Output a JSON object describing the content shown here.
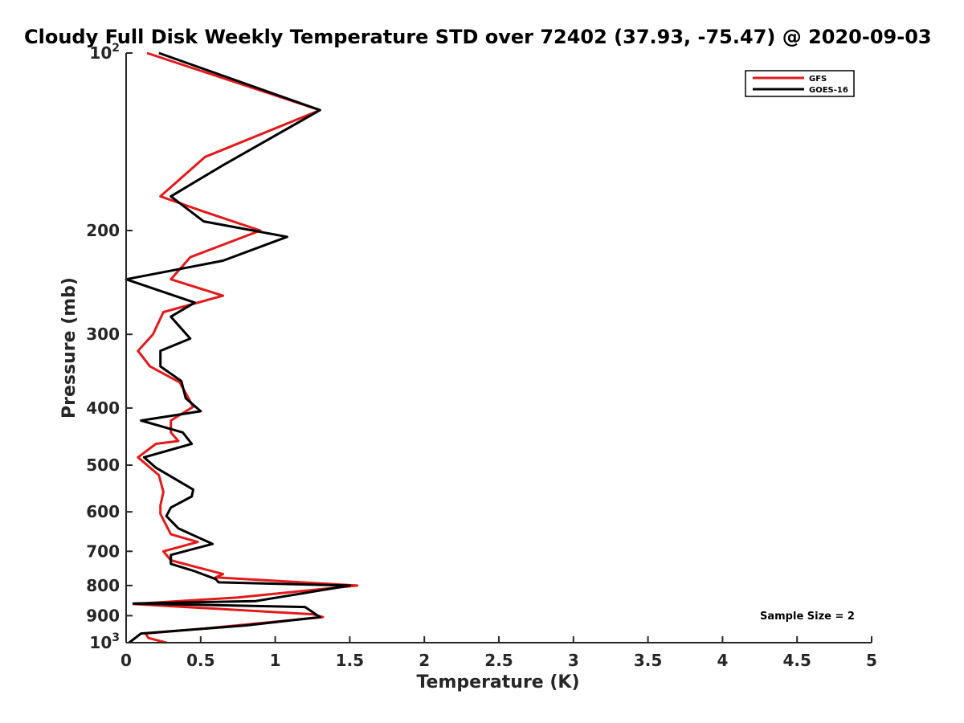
{
  "chart_data": {
    "type": "line",
    "title": "Cloudy Full Disk Weekly Temperature STD over 72402 (37.93, -75.47) @ 2020-09-03",
    "xlabel": "Temperature (K)",
    "ylabel": "Pressure (mb)",
    "xlim": [
      0,
      5
    ],
    "ylim": [
      100,
      1000
    ],
    "yscale": "log",
    "y_reversed": true,
    "grid": false,
    "legend_position": "top-right",
    "x_ticks": [
      "0",
      "0.5",
      "1",
      "1.5",
      "2",
      "2.5",
      "3",
      "3.5",
      "4",
      "4.5",
      "5"
    ],
    "y_ticks": [
      {
        "value": 100,
        "base": "10",
        "exp": "2"
      },
      {
        "value": 200,
        "label": "200"
      },
      {
        "value": 300,
        "label": "300"
      },
      {
        "value": 400,
        "label": "400"
      },
      {
        "value": 500,
        "label": "500"
      },
      {
        "value": 600,
        "label": "600"
      },
      {
        "value": 700,
        "label": "700"
      },
      {
        "value": 800,
        "label": "800"
      },
      {
        "value": 900,
        "label": "900"
      },
      {
        "value": 1000,
        "base": "10",
        "exp": "3"
      }
    ],
    "annotation": "Sample Size = 2",
    "series": [
      {
        "name": "GFS",
        "color": "#e31a1c",
        "points": [
          [
            0.14,
            100
          ],
          [
            1.3,
            125
          ],
          [
            0.53,
            150
          ],
          [
            0.23,
            175
          ],
          [
            0.5,
            185
          ],
          [
            0.9,
            200
          ],
          [
            0.43,
            222
          ],
          [
            0.3,
            242
          ],
          [
            0.65,
            258
          ],
          [
            0.25,
            275
          ],
          [
            0.18,
            300
          ],
          [
            0.08,
            320
          ],
          [
            0.16,
            340
          ],
          [
            0.36,
            362
          ],
          [
            0.45,
            398
          ],
          [
            0.3,
            420
          ],
          [
            0.3,
            440
          ],
          [
            0.35,
            455
          ],
          [
            0.2,
            460
          ],
          [
            0.08,
            485
          ],
          [
            0.22,
            520
          ],
          [
            0.25,
            555
          ],
          [
            0.23,
            585
          ],
          [
            0.23,
            605
          ],
          [
            0.3,
            655
          ],
          [
            0.48,
            675
          ],
          [
            0.25,
            700
          ],
          [
            0.3,
            725
          ],
          [
            0.65,
            765
          ],
          [
            0.6,
            775
          ],
          [
            1.55,
            800
          ],
          [
            0.75,
            838
          ],
          [
            0.05,
            860
          ],
          [
            1.25,
            895
          ],
          [
            1.32,
            905
          ],
          [
            0.55,
            945
          ],
          [
            0.13,
            965
          ],
          [
            0.15,
            982
          ],
          [
            0.27,
            1000
          ]
        ]
      },
      {
        "name": "GOES-16",
        "color": "#000000",
        "points": [
          [
            0.22,
            100
          ],
          [
            1.3,
            125
          ],
          [
            0.65,
            155
          ],
          [
            0.3,
            175
          ],
          [
            0.52,
            193
          ],
          [
            1.08,
            205
          ],
          [
            0.65,
            225
          ],
          [
            0.0,
            242
          ],
          [
            0.46,
            265
          ],
          [
            0.3,
            280
          ],
          [
            0.43,
            305
          ],
          [
            0.23,
            320
          ],
          [
            0.23,
            340
          ],
          [
            0.37,
            360
          ],
          [
            0.4,
            385
          ],
          [
            0.5,
            405
          ],
          [
            0.1,
            420
          ],
          [
            0.38,
            440
          ],
          [
            0.44,
            460
          ],
          [
            0.12,
            485
          ],
          [
            0.2,
            505
          ],
          [
            0.45,
            550
          ],
          [
            0.44,
            565
          ],
          [
            0.3,
            590
          ],
          [
            0.27,
            610
          ],
          [
            0.35,
            640
          ],
          [
            0.58,
            680
          ],
          [
            0.3,
            710
          ],
          [
            0.3,
            735
          ],
          [
            0.45,
            755
          ],
          [
            0.6,
            780
          ],
          [
            0.62,
            790
          ],
          [
            1.5,
            800
          ],
          [
            0.87,
            850
          ],
          [
            0.05,
            858
          ],
          [
            1.2,
            870
          ],
          [
            1.3,
            905
          ],
          [
            0.8,
            935
          ],
          [
            0.1,
            965
          ],
          [
            0.02,
            1000
          ]
        ]
      }
    ]
  }
}
